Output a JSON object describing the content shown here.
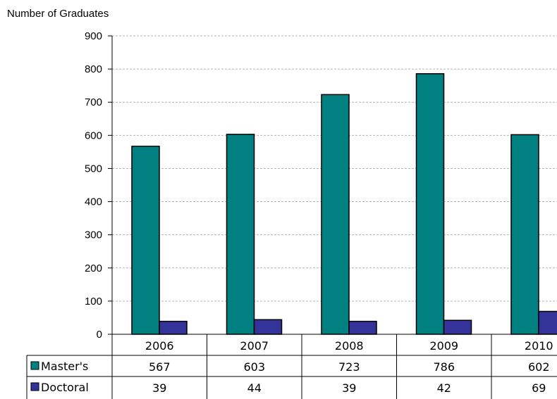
{
  "chart_data": {
    "type": "bar",
    "ylabel": "Number of Graduates",
    "ylim": [
      0,
      900
    ],
    "yticks": [
      0,
      100,
      200,
      300,
      400,
      500,
      600,
      700,
      800,
      900
    ],
    "grid": true,
    "categories": [
      "2006",
      "2007",
      "2008",
      "2009",
      "2010"
    ],
    "series": [
      {
        "name": "Master's",
        "values": [
          567,
          603,
          723,
          786,
          602
        ],
        "color": "#008080"
      },
      {
        "name": "Doctoral",
        "values": [
          39,
          44,
          39,
          42,
          69
        ],
        "color": "#333399"
      }
    ],
    "legend": "data-table"
  }
}
